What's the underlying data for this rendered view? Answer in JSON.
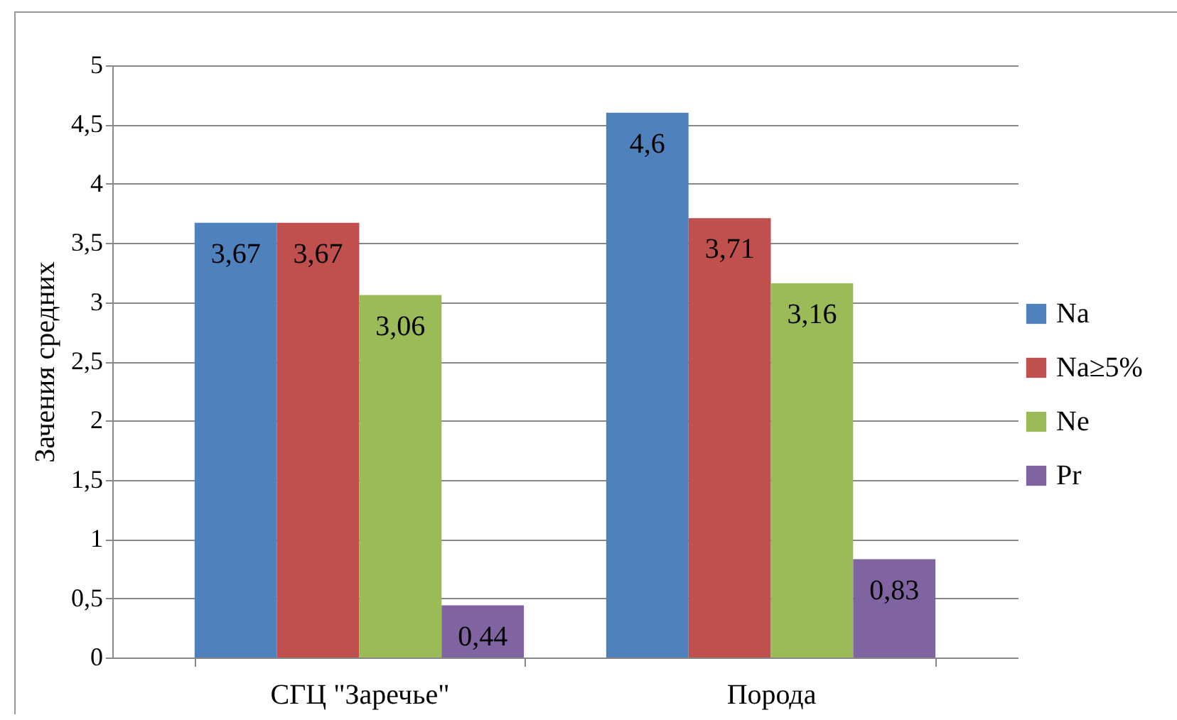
{
  "chart_data": {
    "type": "bar",
    "ylabel": "Зачения средних",
    "categories": [
      "СГЦ \"Заречье\"",
      "Порода"
    ],
    "series": [
      {
        "name": "Na",
        "color": "#4f81bd",
        "values": [
          3.67,
          4.6
        ],
        "value_labels": [
          "3,67",
          "4,6"
        ]
      },
      {
        "name": "Na≥5%",
        "color": "#c0504d",
        "values": [
          3.67,
          3.71
        ],
        "value_labels": [
          "3,67",
          "3,71"
        ]
      },
      {
        "name": "Ne",
        "color": "#9bbb59",
        "values": [
          3.06,
          3.16
        ],
        "value_labels": [
          "3,06",
          "3,16"
        ]
      },
      {
        "name": "Pr",
        "color": "#8064a2",
        "values": [
          0.44,
          0.83
        ],
        "value_labels": [
          "0,44",
          "0,83"
        ]
      }
    ],
    "ylim": [
      0,
      5
    ],
    "yticks": [
      0,
      {
        "value": 0.5,
        "label": "0,5"
      },
      1,
      {
        "value": 1.5,
        "label": "1,5"
      },
      2,
      {
        "value": 2.5,
        "label": "2,5"
      },
      3,
      {
        "value": 3.5,
        "label": "3,5"
      },
      4,
      {
        "value": 4.5,
        "label": "4,5"
      },
      5
    ],
    "grid": "y",
    "legend": "right"
  }
}
